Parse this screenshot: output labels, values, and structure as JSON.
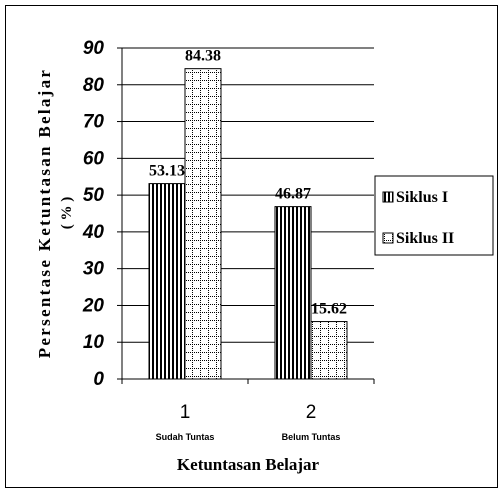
{
  "chart_data": {
    "type": "bar",
    "categories": [
      "1",
      "2"
    ],
    "category_sublabels": [
      "Sudah Tuntas",
      "Belum Tuntas"
    ],
    "series": [
      {
        "name": "Siklus I",
        "values": [
          53.13,
          46.87
        ],
        "pattern": "vertical-stripes"
      },
      {
        "name": "Siklus II",
        "values": [
          84.38,
          15.62
        ],
        "pattern": "dotted-grid"
      }
    ],
    "data_labels": [
      [
        "53.13",
        "46.87"
      ],
      [
        "84.38",
        "15.62"
      ]
    ],
    "xlabel": "Ketuntasan Belajar",
    "ylabel_line1": "Persentase Ketuntasan Belajar",
    "ylabel_line2": "( % )",
    "ylim": [
      0,
      90
    ],
    "yticks": [
      0,
      10,
      20,
      30,
      40,
      50,
      60,
      70,
      80,
      90
    ],
    "grid": true,
    "legend_position": "right"
  }
}
